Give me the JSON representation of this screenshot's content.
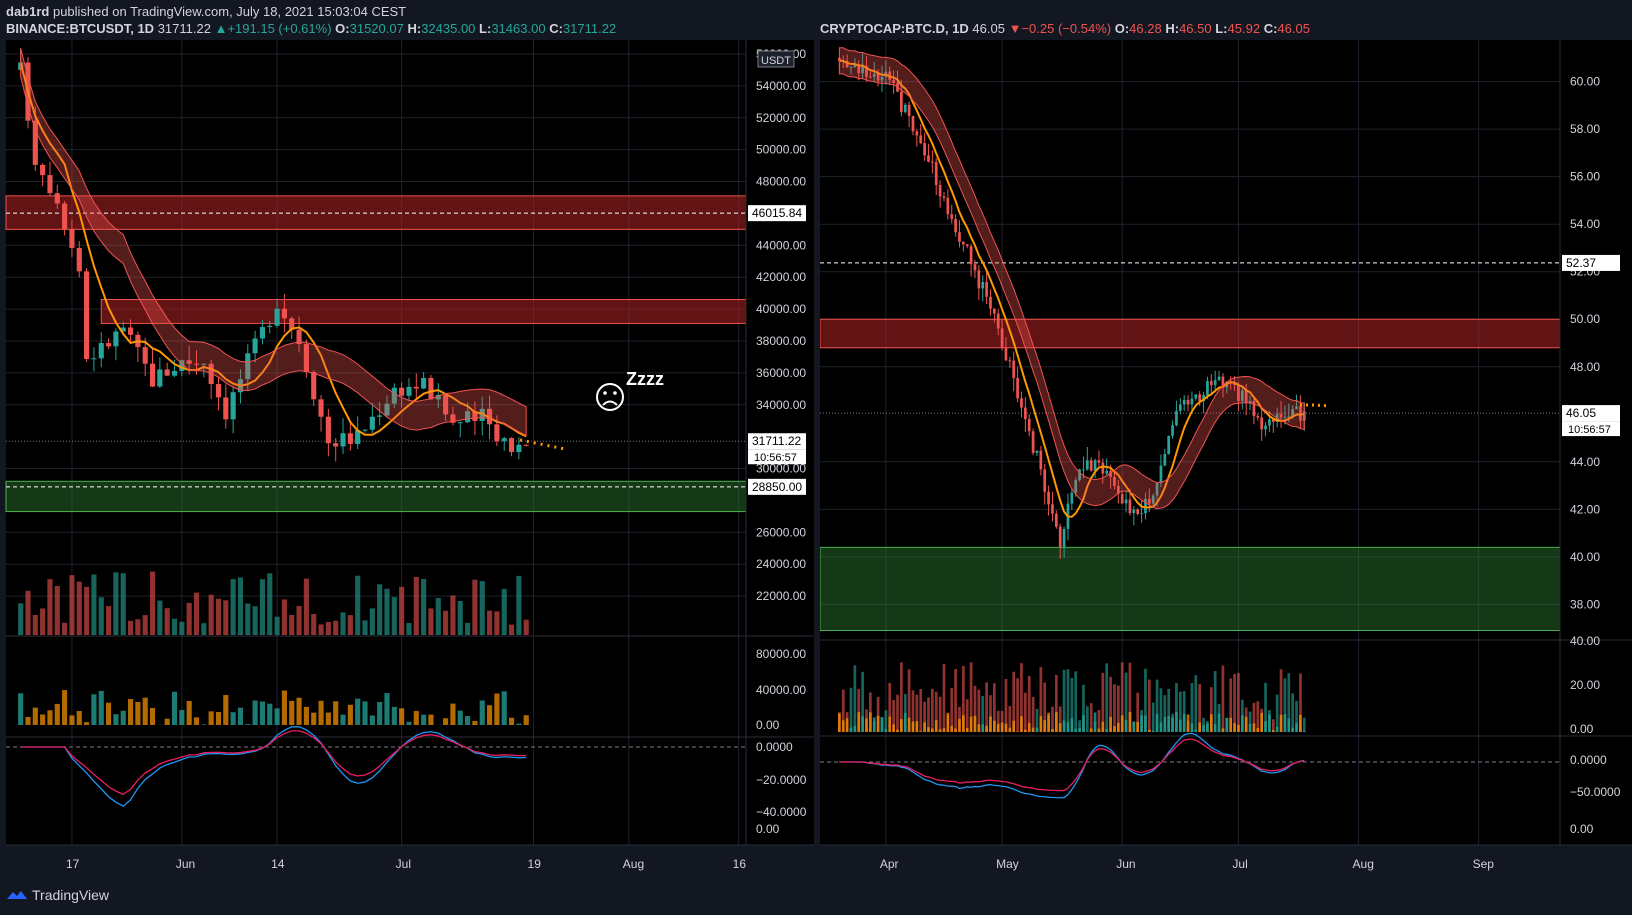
{
  "publish": {
    "author": "dab1rd",
    "text": "published on TradingView.com, July 18, 2021 15:03:04 CEST"
  },
  "left": {
    "symbol": "BINANCE:BTCUSDT, 1D",
    "last": "31711.22",
    "change": "+191.15 (+0.61%)",
    "o_label": "O:",
    "o": "31520.07",
    "h_label": "H:",
    "h": "32435.00",
    "l_label": "L:",
    "l": "31463.00",
    "c_label": "C:",
    "c": "31711.22",
    "currency": "USDT",
    "price_ticks": [
      "56000.00",
      "54000.00",
      "52000.00",
      "50000.00",
      "48000.00",
      "44000.00",
      "42000.00",
      "40000.00",
      "38000.00",
      "36000.00",
      "34000.00",
      "30000.00",
      "26000.00",
      "24000.00",
      "22000.00"
    ],
    "price_tick_values": [
      56000,
      54000,
      52000,
      50000,
      48000,
      44000,
      42000,
      40000,
      38000,
      36000,
      34000,
      30000,
      26000,
      24000,
      22000
    ],
    "tag_resistance": "46015.84",
    "tag_price": "31711.22",
    "tag_countdown": "10:56:57",
    "tag_support": "28850.00",
    "osc1_ticks": [
      "80000.00",
      "40000.00",
      "0.00"
    ],
    "osc2_ticks": [
      "0.0000",
      "−20.0000",
      "−40.0000",
      "0.00"
    ],
    "x_ticks": [
      "17",
      "Jun",
      "14",
      "Jul",
      "19",
      "Aug",
      "16"
    ],
    "annotation_text": "Zzzz",
    "zones": [
      {
        "label": "resistance-1",
        "from": 45000,
        "to": 47100
      },
      {
        "label": "resistance-2",
        "from": 39100,
        "to": 40600
      },
      {
        "label": "support",
        "from": 27300,
        "to": 29200
      }
    ]
  },
  "right": {
    "symbol": "CRYPTOCAP:BTC.D, 1D",
    "last": "46.05",
    "change": "−0.25 (−0.54%)",
    "o_label": "O:",
    "o": "46.28",
    "h_label": "H:",
    "h": "46.50",
    "l_label": "L:",
    "l": "45.92",
    "c_label": "C:",
    "c": "46.05",
    "price_ticks": [
      "60.00",
      "58.00",
      "56.00",
      "54.00",
      "52.00",
      "50.00",
      "48.00",
      "44.00",
      "42.00",
      "40.00",
      "38.00"
    ],
    "price_tick_values": [
      60,
      58,
      56,
      54,
      52,
      50,
      48,
      44,
      42,
      40,
      38
    ],
    "tag_resistance": "52.37",
    "tag_price": "46.05",
    "tag_countdown": "10:56:57",
    "osc1_ticks": [
      "40.00",
      "20.00",
      "0.00"
    ],
    "osc2_ticks": [
      "0.0000",
      "−50.0000",
      "0.00"
    ],
    "x_ticks": [
      "Apr",
      "May",
      "Jun",
      "Jul",
      "Aug",
      "Sep"
    ],
    "zones": [
      {
        "label": "resistance",
        "from": 48.8,
        "to": 50.0
      },
      {
        "label": "support",
        "from": 36.9,
        "to": 40.4
      }
    ]
  },
  "footer": {
    "brand": "TradingView"
  },
  "colors": {
    "up": "#26a69a",
    "down": "#ef5350",
    "orange": "#ff9800",
    "bg": "#131722",
    "zone_red": "#b22222",
    "zone_green": "#2e7d32"
  },
  "chart_data": [
    {
      "type": "candlestick",
      "title": "BINANCE:BTCUSDT, 1D",
      "ylabel": "USDT",
      "ylim": [
        20500,
        56500
      ],
      "x_labels": [
        "17",
        "Jun",
        "14",
        "Jul",
        "19",
        "Aug",
        "16"
      ],
      "close_trend": [
        [
          "May 10",
          55000
        ],
        [
          "May 12",
          49500
        ],
        [
          "May 15",
          47000
        ],
        [
          "May 18",
          42500
        ],
        [
          "May 19",
          37000
        ],
        [
          "May 21",
          37500
        ],
        [
          "May 24",
          38800
        ],
        [
          "May 28",
          35600
        ],
        [
          "Jun 1",
          36700
        ],
        [
          "Jun 4",
          36800
        ],
        [
          "Jun 7",
          33600
        ],
        [
          "Jun 10",
          36700
        ],
        [
          "Jun 14",
          40500
        ],
        [
          "Jun 17",
          38100
        ],
        [
          "Jun 21",
          31700
        ],
        [
          "Jun 25",
          32000
        ],
        [
          "Jun 30",
          35000
        ],
        [
          "Jul 4",
          35300
        ],
        [
          "Jul 8",
          32900
        ],
        [
          "Jul 12",
          33200
        ],
        [
          "Jul 16",
          31400
        ],
        [
          "Jul 18",
          31711.22
        ]
      ],
      "levels": {
        "resistance": 46015.84,
        "support": 28850.0,
        "last": 31711.22
      }
    },
    {
      "type": "candlestick",
      "title": "CRYPTOCAP:BTC.D, 1D",
      "ylim": [
        36.5,
        61.5
      ],
      "x_labels": [
        "Apr",
        "May",
        "Jun",
        "Jul",
        "Aug",
        "Sep"
      ],
      "close_trend": [
        [
          "Mar 20",
          61.0
        ],
        [
          "Apr 1",
          60.2
        ],
        [
          "Apr 10",
          57.5
        ],
        [
          "Apr 20",
          53.5
        ],
        [
          "Apr 28",
          50.5
        ],
        [
          "May 5",
          47.0
        ],
        [
          "May 12",
          43.0
        ],
        [
          "May 16",
          40.5
        ],
        [
          "May 20",
          43.5
        ],
        [
          "May 25",
          44.0
        ],
        [
          "Jun 1",
          42.5
        ],
        [
          "Jun 5",
          41.5
        ],
        [
          "Jun 10",
          43.0
        ],
        [
          "Jun 15",
          46.0
        ],
        [
          "Jun 22",
          47.0
        ],
        [
          "Jun 28",
          47.5
        ],
        [
          "Jul 3",
          46.5
        ],
        [
          "Jul 8",
          45.5
        ],
        [
          "Jul 14",
          46.0
        ],
        [
          "Jul 18",
          46.05
        ]
      ],
      "levels": {
        "resistance": 52.37,
        "last": 46.05
      }
    }
  ]
}
